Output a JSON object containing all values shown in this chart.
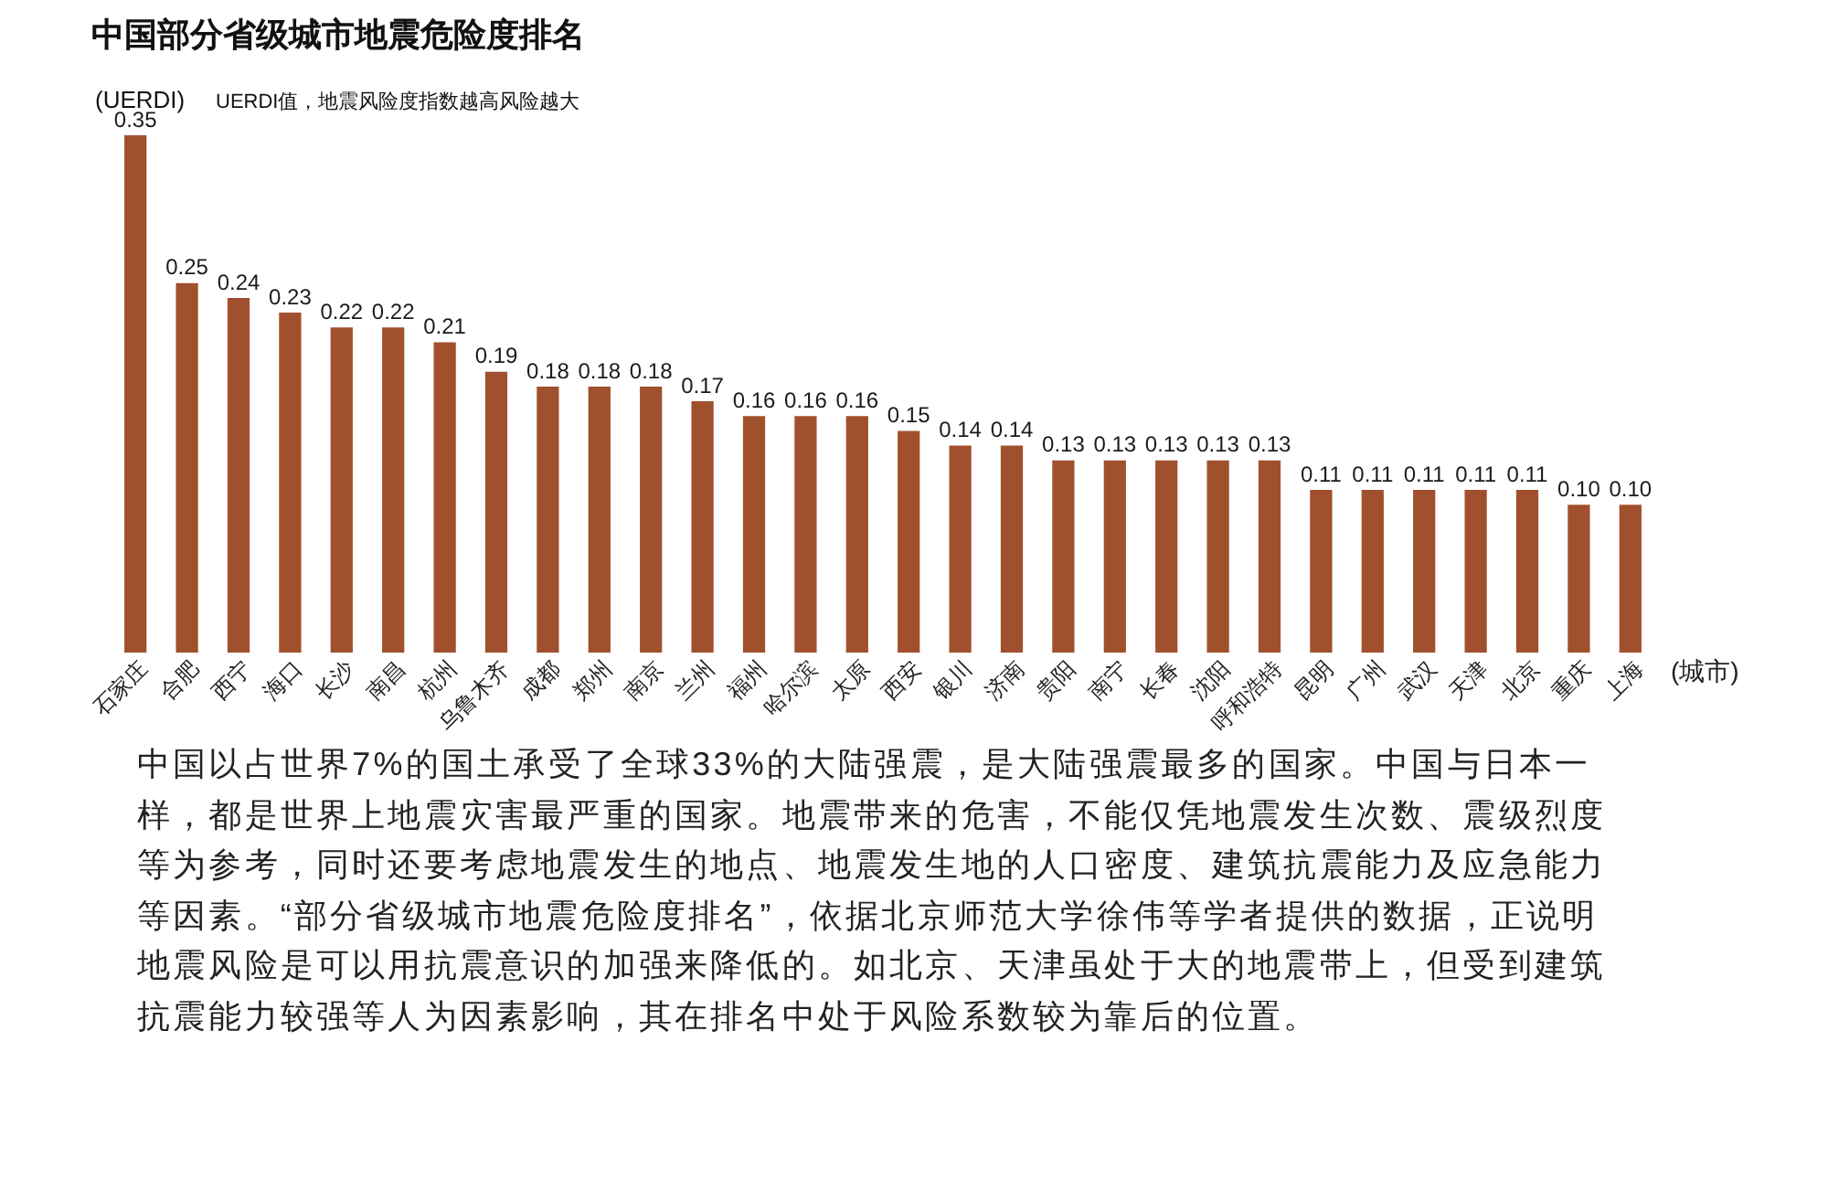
{
  "chart_data": {
    "type": "bar",
    "title": "中国部分省级城市地震危险度排名",
    "subtitle": "UERDI值，地震风险度指数越高风险越大",
    "ylabel": "(UERDI)",
    "xlabel": "(城市)",
    "categories": [
      "石家庄",
      "合肥",
      "西宁",
      "海口",
      "长沙",
      "南昌",
      "杭州",
      "乌鲁木齐",
      "成都",
      "郑州",
      "南京",
      "兰州",
      "福州",
      "哈尔滨",
      "太原",
      "西安",
      "银川",
      "济南",
      "贵阳",
      "南宁",
      "长春",
      "沈阳",
      "呼和浩特",
      "昆明",
      "广州",
      "武汉",
      "天津",
      "北京",
      "重庆",
      "上海"
    ],
    "values": [
      0.35,
      0.25,
      0.24,
      0.23,
      0.22,
      0.22,
      0.21,
      0.19,
      0.18,
      0.18,
      0.18,
      0.17,
      0.16,
      0.16,
      0.16,
      0.15,
      0.14,
      0.14,
      0.13,
      0.13,
      0.13,
      0.13,
      0.13,
      0.11,
      0.11,
      0.11,
      0.11,
      0.11,
      0.1,
      0.1
    ],
    "value_labels": [
      "0.35",
      "0.25",
      "0.24",
      "0.23",
      "0.22",
      "0.22",
      "0.21",
      "0.19",
      "0.18",
      "0.18",
      "0.18",
      "0.17",
      "0.16",
      "0.16",
      "0.16",
      "0.15",
      "0.14",
      "0.14",
      "0.13",
      "0.13",
      "0.13",
      "0.13",
      "0.13",
      "0.11",
      "0.11",
      "0.11",
      "0.11",
      "0.11",
      "0.10",
      "0.10"
    ],
    "color": "#a0502d",
    "tick_labels": "x",
    "annotations": [
      "中国以占世界7%的国土承受了全球33%的大陆强震，是大陆强震最多的国家。中国与日本一样，都是世界上地震灾害最严重的国家。地震带来的危害，不能仅凭地震发生次数、震级烈度等为参考，同时还要考虑地震发生的地点、地震发生地的人口密度、建筑抗震能力及应急能力等因素。“部分省级城市地震危险度排名”，依据北京师范大学徐伟等学者提供的数据，正说明地震风险是可以用抗震意识的加强来降低的。如北京、天津虽处于大的地震带上，但受到建筑抗震能力较强等人为因素影响，其在排名中处于风险系数较为靠后的位置。"
    ]
  }
}
